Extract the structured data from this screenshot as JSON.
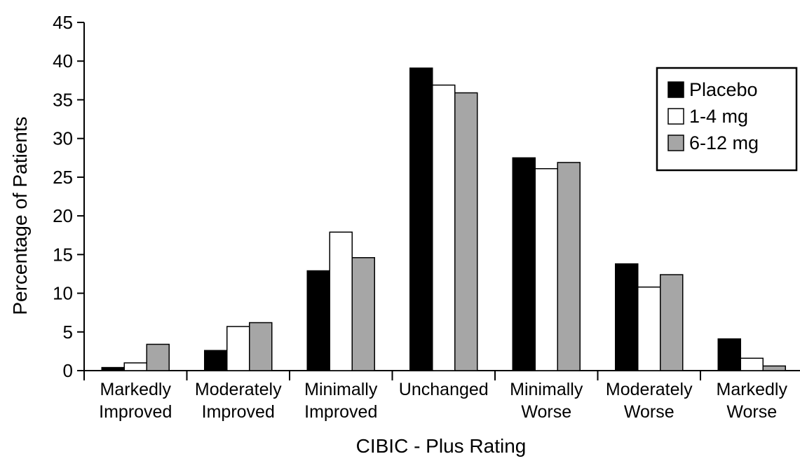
{
  "chart_data": {
    "type": "bar",
    "title": "",
    "xlabel": "CIBIC - Plus Rating",
    "ylabel": "Percentage of Patients",
    "ylim": [
      0,
      45
    ],
    "yticks": [
      0,
      5,
      10,
      15,
      20,
      25,
      30,
      35,
      40,
      45
    ],
    "grid": false,
    "legend_position": "top-right",
    "categories": [
      [
        "Markedly",
        "Improved"
      ],
      [
        "Moderately",
        "Improved"
      ],
      [
        "Minimally",
        "Improved"
      ],
      [
        "Unchanged"
      ],
      [
        "Minimally",
        "Worse"
      ],
      [
        "Moderately",
        "Worse"
      ],
      [
        "Markedly",
        "Worse"
      ]
    ],
    "series": [
      {
        "name": "Placebo",
        "color": "#000000",
        "values": [
          0.4,
          2.6,
          12.9,
          39.1,
          27.5,
          13.8,
          4.1
        ]
      },
      {
        "name": "1-4 mg",
        "color": "#ffffff",
        "values": [
          1.0,
          5.7,
          17.9,
          36.9,
          26.1,
          10.8,
          1.6
        ]
      },
      {
        "name": "6-12 mg",
        "color": "#a6a6a6",
        "values": [
          3.4,
          6.2,
          14.6,
          35.9,
          26.9,
          12.4,
          0.6
        ]
      }
    ]
  }
}
